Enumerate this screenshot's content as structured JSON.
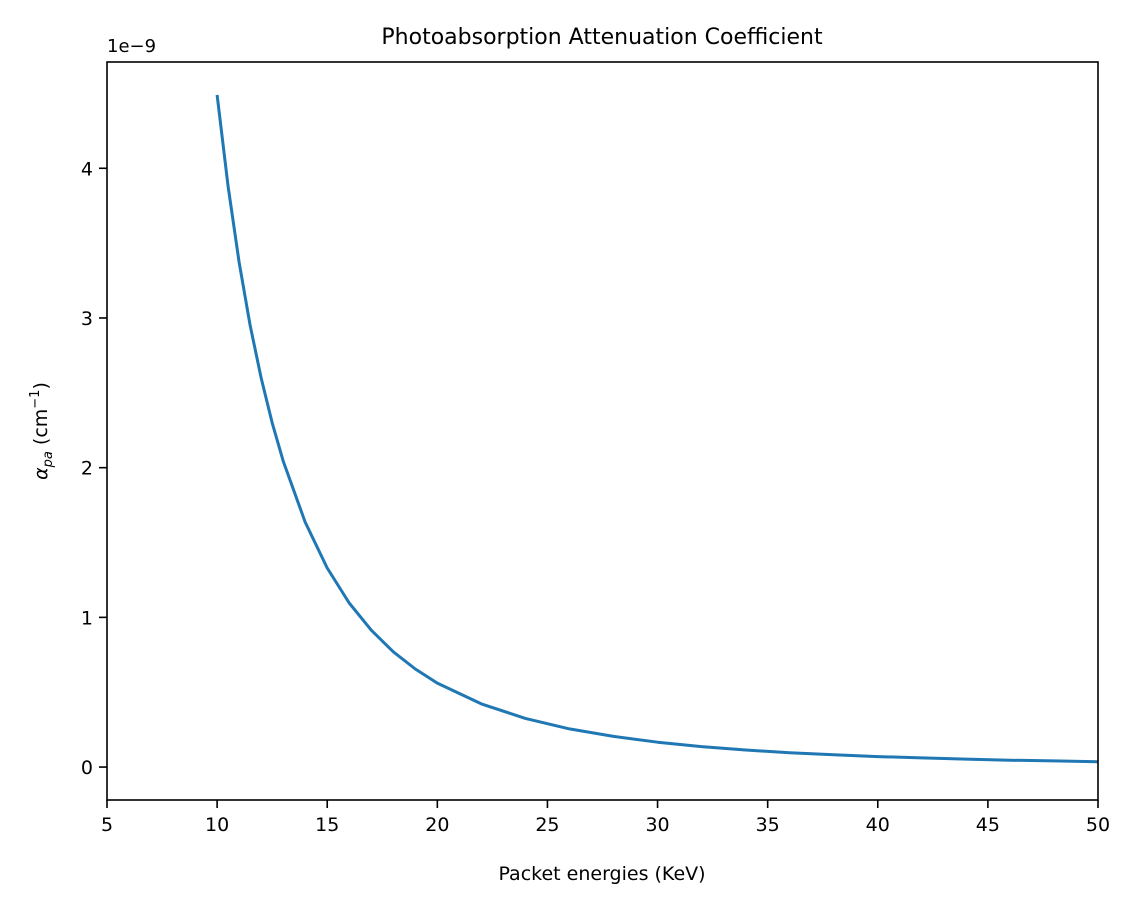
{
  "chart_data": {
    "type": "line",
    "title": "Photoabsorption Attenuation Coefficient",
    "xlabel": "Packet energies (KeV)",
    "ylabel_main": "α",
    "ylabel_sub": "pa",
    "ylabel_unit_prefix": " (cm",
    "ylabel_unit_exp": "−1",
    "ylabel_unit_suffix": ")",
    "y_offset_label": "1e−9",
    "xlim": [
      5,
      50
    ],
    "ylim": [
      -0.22,
      4.71
    ],
    "y_scale": 1e-09,
    "grid": false,
    "legend": null,
    "x_ticks": [
      5,
      10,
      15,
      20,
      25,
      30,
      35,
      40,
      45,
      50
    ],
    "y_ticks": [
      0,
      1,
      2,
      3,
      4
    ],
    "series": [
      {
        "name": "alpha_pa",
        "color": "#1f77b4",
        "x": [
          10,
          10.5,
          11,
          11.5,
          12,
          12.5,
          13,
          14,
          15,
          16,
          17,
          18,
          19,
          20,
          22,
          24,
          26,
          28,
          30,
          32,
          34,
          36,
          38,
          40,
          42,
          44,
          46,
          48,
          50
        ],
        "values": [
          4.49,
          3.879,
          3.373,
          2.952,
          2.598,
          2.299,
          2.044,
          1.636,
          1.33,
          1.096,
          0.914,
          0.77,
          0.655,
          0.561,
          0.422,
          0.325,
          0.255,
          0.205,
          0.166,
          0.137,
          0.114,
          0.096,
          0.082,
          0.07,
          0.061,
          0.053,
          0.046,
          0.041,
          0.036
        ]
      }
    ]
  }
}
